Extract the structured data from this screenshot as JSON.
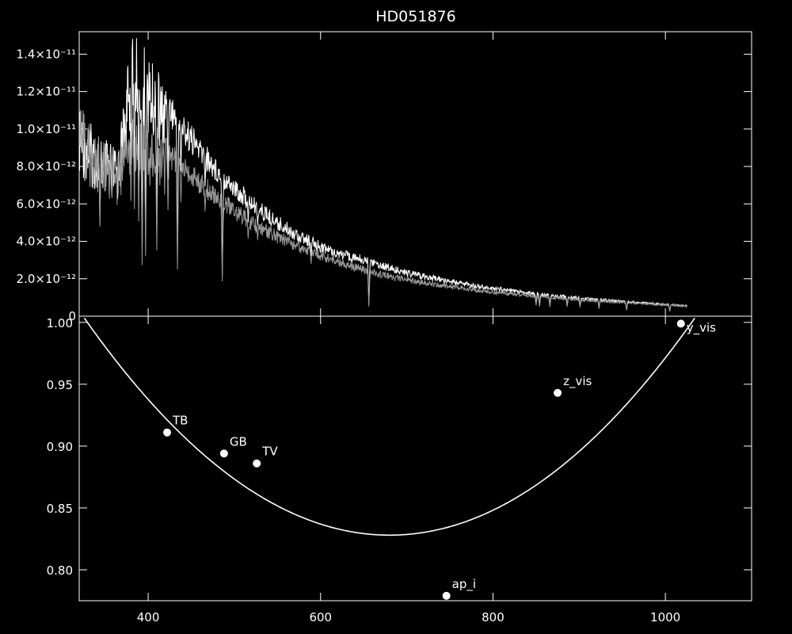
{
  "chart_data": [
    {
      "type": "line",
      "title": "HD051876",
      "xlim": [
        320,
        1100
      ],
      "ylim": [
        0,
        1.52e-11
      ],
      "y_ticks": [
        {
          "value": 0,
          "label": "0"
        },
        {
          "value": 2e-12,
          "label": "2.0×10⁻¹²"
        },
        {
          "value": 4e-12,
          "label": "4.0×10⁻¹²"
        },
        {
          "value": 6e-12,
          "label": "6.0×10⁻¹²"
        },
        {
          "value": 8e-12,
          "label": "8.0×10⁻¹²"
        },
        {
          "value": 1e-11,
          "label": "1.0×10⁻¹¹"
        },
        {
          "value": 1.2e-11,
          "label": "1.2×10⁻¹¹"
        },
        {
          "value": 1.4e-11,
          "label": "1.4×10⁻¹¹"
        }
      ],
      "grid": false,
      "series": [
        {
          "color": "#ffffff",
          "x": [
            320,
            335,
            350,
            365,
            375,
            380,
            385,
            390,
            395,
            400,
            420,
            440,
            460,
            480,
            500,
            520,
            550,
            580,
            600,
            630,
            656,
            680,
            700,
            750,
            800,
            850,
            900,
            950,
            1000,
            1025
          ],
          "y": [
            1.12e-11,
            1.02e-11,
            9.5e-12,
            9e-12,
            1.3e-11,
            1.47e-11,
            1.5e-11,
            1.48e-11,
            1.45e-11,
            1.4e-11,
            1.24e-11,
            1.09e-11,
            9.6e-12,
            8.4e-12,
            7.4e-12,
            6.5e-12,
            5.4e-12,
            4.5e-12,
            4e-12,
            3.5e-12,
            3.2e-12,
            2.8e-12,
            2.5e-12,
            2e-12,
            1.6e-12,
            1.3e-12,
            1.05e-12,
            8.5e-13,
            6.8e-13,
            6e-13
          ]
        },
        {
          "color": "#9a9a9a",
          "x": [
            320,
            335,
            350,
            365,
            375,
            380,
            385,
            390,
            395,
            400,
            420,
            440,
            460,
            480,
            500,
            520,
            550,
            580,
            600,
            630,
            656,
            680,
            700,
            750,
            800,
            850,
            900,
            950,
            1000,
            1025
          ],
          "y": [
            1.15e-11,
            1e-11,
            9.3e-12,
            8.8e-12,
            1e-11,
            1.12e-11,
            1.15e-11,
            1.12e-11,
            1.08e-11,
            1.05e-11,
            9.6e-12,
            8.6e-12,
            7.7e-12,
            6.9e-12,
            6.1e-12,
            5.4e-12,
            4.6e-12,
            3.9e-12,
            3.5e-12,
            3e-12,
            2.6e-12,
            2.3e-12,
            2.1e-12,
            1.7e-12,
            1.4e-12,
            1.15e-12,
            9.5e-13,
            8e-13,
            6.5e-13,
            6e-13
          ]
        }
      ],
      "absorption_lines": [
        {
          "x": 344,
          "depth": 0.5
        },
        {
          "x": 358,
          "depth": 0.3
        },
        {
          "x": 380,
          "depth": 0.45
        },
        {
          "x": 384,
          "depth": 0.5
        },
        {
          "x": 389,
          "depth": 0.55
        },
        {
          "x": 393,
          "depth": 0.75
        },
        {
          "x": 397,
          "depth": 0.7
        },
        {
          "x": 410,
          "depth": 0.65
        },
        {
          "x": 423,
          "depth": 0.4
        },
        {
          "x": 434,
          "depth": 0.72
        },
        {
          "x": 438,
          "depth": 0.3
        },
        {
          "x": 466,
          "depth": 0.25
        },
        {
          "x": 486,
          "depth": 0.72
        },
        {
          "x": 516,
          "depth": 0.25
        },
        {
          "x": 527,
          "depth": 0.22
        },
        {
          "x": 589,
          "depth": 0.25
        },
        {
          "x": 656,
          "depth": 0.8
        },
        {
          "x": 686,
          "depth": 0.15
        },
        {
          "x": 760,
          "depth": 0.12
        },
        {
          "x": 850,
          "depth": 0.5
        },
        {
          "x": 854,
          "depth": 0.55
        },
        {
          "x": 866,
          "depth": 0.55
        },
        {
          "x": 886,
          "depth": 0.5
        },
        {
          "x": 901,
          "depth": 0.5
        },
        {
          "x": 923,
          "depth": 0.55
        },
        {
          "x": 955,
          "depth": 0.6
        },
        {
          "x": 1005,
          "depth": 0.6
        }
      ]
    },
    {
      "type": "scatter",
      "xlim": [
        320,
        1100
      ],
      "ylim": [
        0.775,
        1.005
      ],
      "x_ticks": [
        400,
        600,
        800,
        1000
      ],
      "y_ticks": [
        {
          "value": 0.8,
          "label": "0.80"
        },
        {
          "value": 0.85,
          "label": "0.85"
        },
        {
          "value": 0.9,
          "label": "0.90"
        },
        {
          "value": 0.95,
          "label": "0.95"
        },
        {
          "value": 1.0,
          "label": "1.00"
        }
      ],
      "grid": false,
      "points": [
        {
          "label": "TB",
          "x": 422,
          "y": 0.911
        },
        {
          "label": "GB",
          "x": 488,
          "y": 0.894
        },
        {
          "label": "TV",
          "x": 526,
          "y": 0.886
        },
        {
          "label": "ap_i",
          "x": 746,
          "y": 0.779
        },
        {
          "label": "z_vis",
          "x": 875,
          "y": 0.943
        },
        {
          "label": "y_vis",
          "x": 1018,
          "y": 0.999
        }
      ],
      "curve": {
        "type": "parabola",
        "vertex_x": 680,
        "vertex_y": 0.828,
        "coefficient": 1.4e-06,
        "x_range": [
          320,
          1100
        ]
      }
    }
  ]
}
